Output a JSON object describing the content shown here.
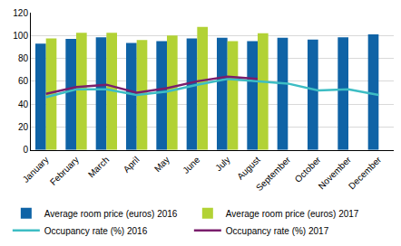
{
  "chart_data": {
    "type": "bar",
    "categories": [
      "January",
      "February",
      "March",
      "April",
      "May",
      "June",
      "July",
      "August",
      "September",
      "October",
      "November",
      "December"
    ],
    "series": [
      {
        "name": "Average room price (euros) 2016",
        "type": "bar",
        "color": "#0f63a6",
        "values": [
          93,
          97,
          98.5,
          93.5,
          95,
          97.5,
          98,
          95,
          98,
          96.5,
          98.5,
          101
        ]
      },
      {
        "name": "Average room price (euros) 2017",
        "type": "bar",
        "color": "#b2d235",
        "values": [
          97.5,
          102.5,
          102.5,
          96,
          100,
          107.5,
          95,
          102,
          null,
          null,
          null,
          null
        ]
      },
      {
        "name": "Occupancy rate (%) 2016",
        "type": "line",
        "color": "#3dbdc4",
        "values": [
          46,
          53,
          53,
          48,
          51,
          57,
          62,
          60,
          58,
          52,
          53,
          48
        ]
      },
      {
        "name": "Occupancy rate (%) 2017",
        "type": "line",
        "color": "#7a1e6c",
        "values": [
          49,
          55,
          57,
          50,
          54,
          60,
          64,
          62,
          null,
          null,
          null,
          null
        ]
      }
    ],
    "ylim": [
      0,
      120
    ],
    "yticks": [
      0,
      20,
      40,
      60,
      80,
      100,
      120
    ],
    "grid": true,
    "legend": "bottom"
  }
}
